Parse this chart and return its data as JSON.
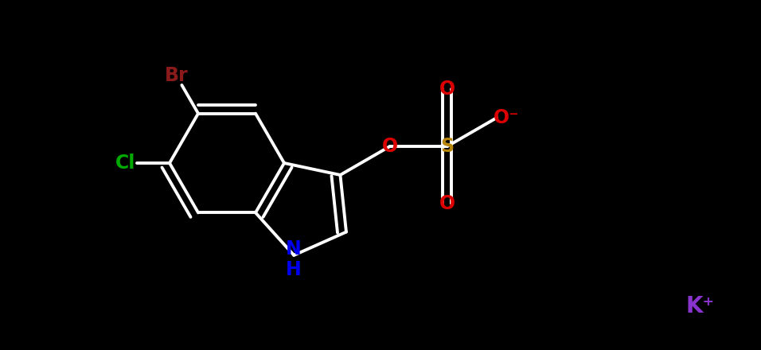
{
  "background_color": "#000000",
  "bond_color": "#ffffff",
  "br_color": "#8b1a1a",
  "cl_color": "#00aa00",
  "nh_color": "#0000ee",
  "o_color": "#dd0000",
  "s_color": "#b8860b",
  "k_color": "#8833cc",
  "br_label": "Br",
  "cl_label": "Cl",
  "nh_label": "NH",
  "n_label": "N",
  "h_label": "H",
  "o_label": "O",
  "s_label": "S",
  "o_minus_label": "O⁻",
  "k_label": "K⁺",
  "figsize": [
    9.56,
    4.4
  ],
  "dpi": 100,
  "lw": 2.8,
  "bl": 0.72
}
